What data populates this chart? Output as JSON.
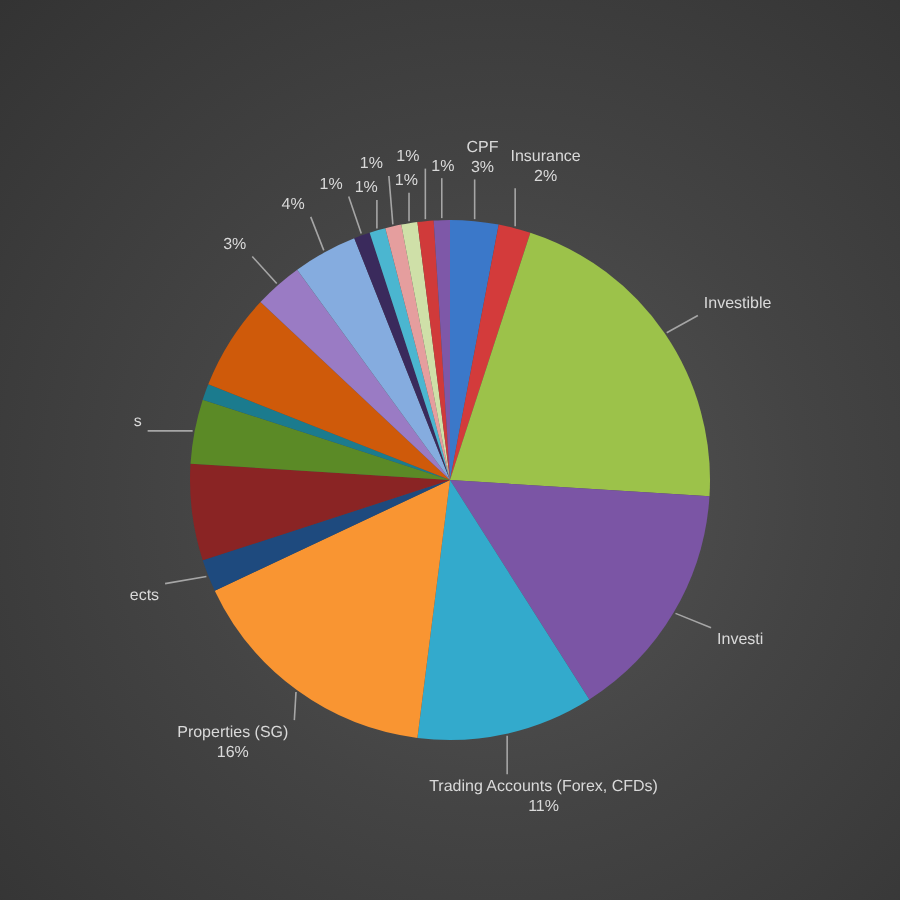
{
  "chart_data": {
    "type": "pie",
    "categories": [
      "CPF",
      "Insurance",
      "Investible",
      "Investi",
      "Trading Accounts (Forex, CFDs)",
      "Properties (SG)",
      "ects",
      null,
      "s",
      null,
      null,
      null,
      null,
      null,
      null,
      null,
      null,
      null,
      null
    ],
    "values": [
      3,
      2,
      21,
      15,
      11,
      16,
      2,
      6,
      4,
      1,
      6,
      3,
      4,
      1,
      1,
      1,
      1,
      1,
      1
    ],
    "colors": [
      "#3b78c9",
      "#d33b3b",
      "#9cc24a",
      "#7b55a5",
      "#33aacc",
      "#f99532",
      "#1e4a7e",
      "#8a2424",
      "#5b8a26",
      "#1b7b8e",
      "#cf5a0a",
      "#9a7bc4",
      "#85acdf",
      "#3a2a5c",
      "#4bb6d0",
      "#e59e9e",
      "#cfe0a8",
      "#d03a3a",
      "#7e58a8"
    ],
    "value_labels": [
      "3%",
      "2%",
      null,
      null,
      "11%",
      "16%",
      null,
      null,
      null,
      null,
      null,
      "3%",
      "4%",
      "1%",
      "1%",
      "1%",
      "1%",
      "1%",
      "1%"
    ]
  }
}
